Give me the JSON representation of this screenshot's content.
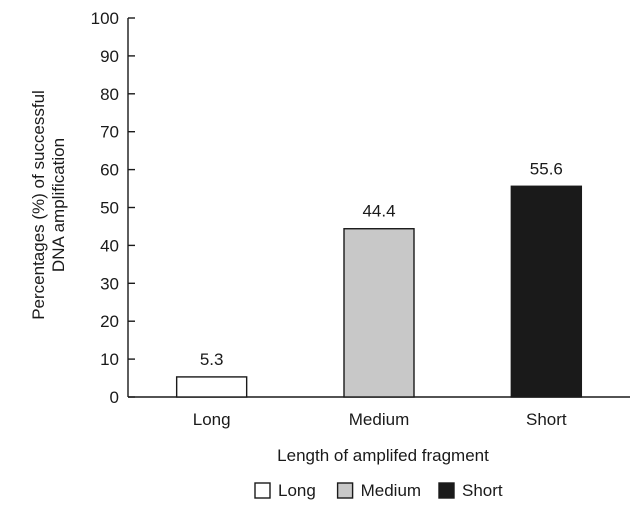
{
  "chart_data": {
    "type": "bar",
    "categories": [
      "Long",
      "Medium",
      "Short"
    ],
    "values": [
      5.3,
      44.4,
      55.6
    ],
    "data_labels": [
      "5.3",
      "44.4",
      "55.6"
    ],
    "colors": [
      "#ffffff",
      "#c8c8c8",
      "#1a1a1a"
    ],
    "xlabel": "Length of amplifed fragment",
    "ylabel_lines": [
      "Percentages (%) of successful",
      "DNA amplification"
    ],
    "ylim": [
      0,
      100
    ],
    "yticks": [
      0,
      10,
      20,
      30,
      40,
      50,
      60,
      70,
      80,
      90,
      100
    ],
    "grid": false,
    "legend": {
      "placement": "bottom",
      "entries": [
        "Long",
        "Medium",
        "Short"
      ]
    }
  }
}
